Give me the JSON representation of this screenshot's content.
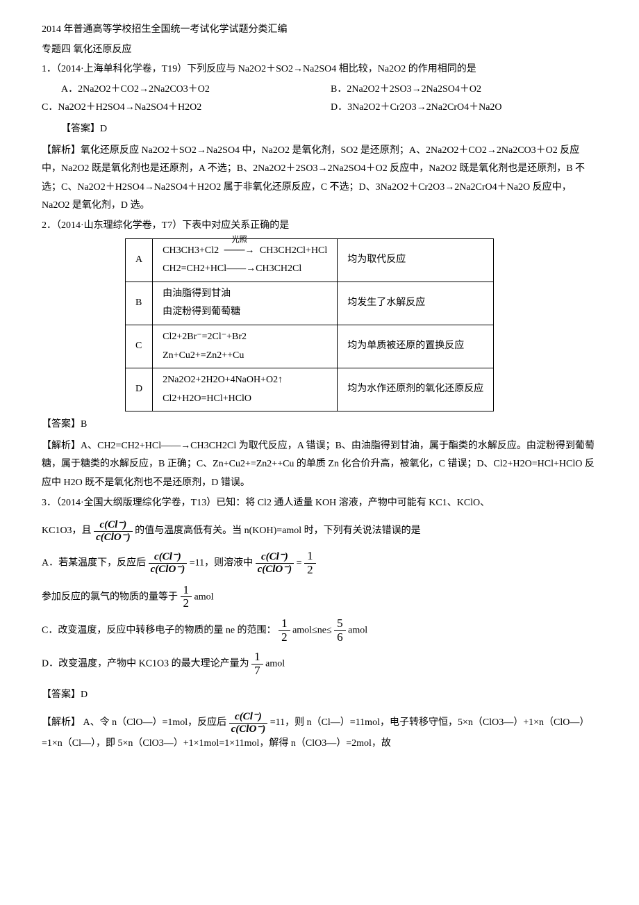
{
  "header": {
    "line1": "2014 年普通高等学校招生全国统一考试化学试题分类汇编",
    "line2": "专题四 氧化还原反应"
  },
  "q1": {
    "stem": "1．（2014·上海单科化学卷，T19）下列反应与 Na2O2＋SO2→Na2SO4 相比较，Na2O2 的作用相同的是",
    "optA": "A．2Na2O2＋CO2→2Na2CO3＋O2",
    "optB": "B．2Na2O2＋2SO3→2Na2SO4＋O2",
    "optC": "C．Na2O2＋H2SO4→Na2SO4＋H2O2",
    "optD": "D．3Na2O2＋Cr2O3→2Na2CrO4＋Na2O",
    "ansLabel": "【答案】",
    "ans": "D",
    "expLabel": "【解析】",
    "exp": "氧化还原反应 Na2O2＋SO2→Na2SO4 中，Na2O2 是氧化剂，SO2 是还原剂；A、2Na2O2＋CO2→2Na2CO3＋O2 反应中，Na2O2 既是氧化剂也是还原剂，A 不选；B、2Na2O2＋2SO3→2Na2SO4＋O2 反应中，Na2O2 既是氧化剂也是还原剂，B 不选；C、Na2O2＋H2SO4→Na2SO4＋H2O2 属于非氧化还原反应，C 不选；D、3Na2O2＋Cr2O3→2Na2CrO4＋Na2O 反应中，Na2O2 是氧化剂，D 选。"
  },
  "q2": {
    "stem": "2．（2014·山东理综化学卷，T7）下表中对应关系正确的是",
    "rows": [
      {
        "k": "A",
        "l1": "CH3CH3+Cl2",
        "cond": "光照",
        "l1b": "CH3CH2Cl+HCl",
        "l2": "CH2=CH2+HCl——→CH3CH2Cl",
        "r": "均为取代反应"
      },
      {
        "k": "B",
        "l1": "由油脂得到甘油",
        "l2": "由淀粉得到葡萄糖",
        "r": "均发生了水解反应"
      },
      {
        "k": "C",
        "l1": "Cl2+2Br⁻=2Cl⁻+Br2",
        "l2": "Zn+Cu2+=Zn2++Cu",
        "r": "均为单质被还原的置换反应"
      },
      {
        "k": "D",
        "l1": "2Na2O2+2H2O+4NaOH+O2↑",
        "l2": "Cl2+H2O=HCl+HClO",
        "r": "均为水作还原剂的氧化还原反应"
      }
    ],
    "ansLabel": "【答案】",
    "ans": "B",
    "expLabel": "【解析】",
    "exp": "A、CH2=CH2+HCl——→CH3CH2Cl 为取代反应，A 错误；B、由油脂得到甘油，属于酯类的水解反应。由淀粉得到葡萄糖，属于糖类的水解反应，B 正确；C、Zn+Cu2+=Zn2++Cu 的单质 Zn 化合价升高，被氧化，C 错误；D、Cl2+H2O=HCl+HClO 反应中 H2O 既不是氧化剂也不是还原剂，D 错误。"
  },
  "q3": {
    "stem1": "3．（2014·全国大纲版理综化学卷，T13）已知：将 Cl2 通人适量 KOH 溶液，产物中可能有 KC1、KClO、",
    "stem2a": "KC1O3，且",
    "fracNum": "c(Cl⁻)",
    "fracDen": "c(ClO⁻)",
    "stem2b": "的值与温度高低有关。当 n(KOH)=amol 时，下列有关说法错误的是",
    "optA1": "A．若某温度下，反应后",
    "optA2": "=11，则溶液中",
    "optA3": "=",
    "half_num": "1",
    "half_den": "2",
    "optB": "参加反应的氯气的物质的量等于",
    "optB2": "amol",
    "optC1": "C．改变温度，反应中转移电子的物质的量 ne 的范围：",
    "optC2": "amol≤ne≤",
    "optC3": "amol",
    "five_num": "5",
    "five_den": "6",
    "optD1": "D．改变温度，产物中 KC1O3 的最大理论产量为",
    "optD2": "amol",
    "sev_num": "1",
    "sev_den": "7",
    "ansLabel": "【答案】",
    "ans": "D",
    "expLabel": "【解析】",
    "exp1": "A、令 n（ClO—）=1mol，反应后",
    "exp2": "=11，则 n（Cl—）=11mol，电子转移守恒，5×n（ClO3—）+1×n（ClO—）=1×n（Cl—），即 5×n（ClO3—）+1×1mol=1×11mol，解得 n（ClO3—）=2mol，故"
  },
  "colors": {
    "text": "#000000",
    "bg": "#ffffff",
    "border": "#000000"
  }
}
